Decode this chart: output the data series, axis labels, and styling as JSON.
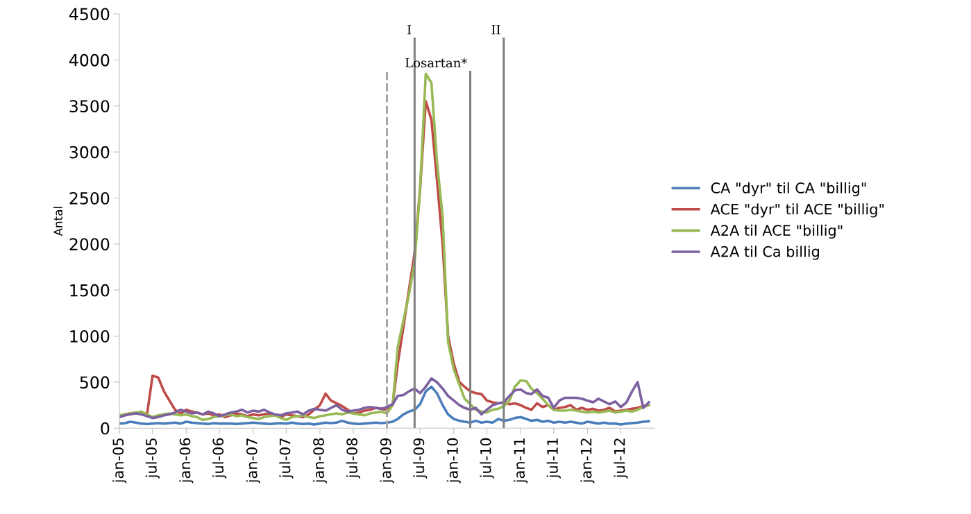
{
  "chart_data": {
    "type": "line",
    "ylabel": "Antal",
    "x": [
      "2005-01",
      "2005-02",
      "2005-03",
      "2005-04",
      "2005-05",
      "2005-06",
      "2005-07",
      "2005-08",
      "2005-09",
      "2005-10",
      "2005-11",
      "2005-12",
      "2006-01",
      "2006-02",
      "2006-03",
      "2006-04",
      "2006-05",
      "2006-06",
      "2006-07",
      "2006-08",
      "2006-09",
      "2006-10",
      "2006-11",
      "2006-12",
      "2007-01",
      "2007-02",
      "2007-03",
      "2007-04",
      "2007-05",
      "2007-06",
      "2007-07",
      "2007-08",
      "2007-09",
      "2007-10",
      "2007-11",
      "2007-12",
      "2008-01",
      "2008-02",
      "2008-03",
      "2008-04",
      "2008-05",
      "2008-06",
      "2008-07",
      "2008-08",
      "2008-09",
      "2008-10",
      "2008-11",
      "2008-12",
      "2009-01",
      "2009-02",
      "2009-03",
      "2009-04",
      "2009-05",
      "2009-06",
      "2009-07",
      "2009-08",
      "2009-09",
      "2009-10",
      "2009-11",
      "2009-12",
      "2010-01",
      "2010-02",
      "2010-03",
      "2010-04",
      "2010-05",
      "2010-06",
      "2010-07",
      "2010-08",
      "2010-09",
      "2010-10",
      "2010-11",
      "2010-12",
      "2011-01",
      "2011-02",
      "2011-03",
      "2011-04",
      "2011-05",
      "2011-06",
      "2011-07",
      "2011-08",
      "2011-09",
      "2011-10",
      "2011-11",
      "2011-12",
      "2012-01",
      "2012-02",
      "2012-03",
      "2012-04",
      "2012-05",
      "2012-06",
      "2012-07",
      "2012-08",
      "2012-09",
      "2012-10",
      "2012-11",
      "2012-12"
    ],
    "series": [
      {
        "name": "CA \"dyr\" til CA \"billig\"",
        "color": "#4a7ebb",
        "values": [
          50,
          55,
          70,
          60,
          50,
          45,
          50,
          55,
          50,
          55,
          60,
          50,
          70,
          60,
          55,
          50,
          45,
          55,
          50,
          50,
          50,
          45,
          50,
          55,
          60,
          55,
          50,
          45,
          50,
          55,
          50,
          60,
          50,
          45,
          50,
          40,
          50,
          60,
          55,
          60,
          80,
          60,
          50,
          45,
          50,
          55,
          60,
          55,
          60,
          70,
          100,
          150,
          180,
          200,
          260,
          400,
          450,
          380,
          250,
          150,
          100,
          80,
          70,
          60,
          80,
          60,
          70,
          60,
          100,
          80,
          90,
          110,
          120,
          100,
          80,
          90,
          70,
          80,
          60,
          70,
          60,
          70,
          60,
          50,
          70,
          60,
          50,
          60,
          50,
          50,
          40,
          50,
          55,
          60,
          70,
          75
        ]
      },
      {
        "name": "ACE \"dyr\" til ACE \"billig\"",
        "color": "#be4b48",
        "values": [
          130,
          150,
          160,
          170,
          160,
          150,
          570,
          550,
          400,
          300,
          200,
          160,
          200,
          180,
          170,
          150,
          160,
          140,
          150,
          120,
          140,
          160,
          150,
          130,
          150,
          140,
          150,
          160,
          140,
          120,
          150,
          140,
          130,
          120,
          150,
          200,
          250,
          375,
          300,
          270,
          240,
          200,
          160,
          170,
          190,
          200,
          220,
          210,
          200,
          250,
          700,
          1100,
          1500,
          1900,
          2600,
          3550,
          3350,
          2700,
          2000,
          1000,
          700,
          500,
          450,
          400,
          380,
          370,
          300,
          280,
          270,
          280,
          260,
          270,
          250,
          220,
          200,
          270,
          230,
          250,
          200,
          220,
          230,
          250,
          200,
          220,
          200,
          210,
          190,
          200,
          220,
          180,
          190,
          200,
          210,
          220,
          240,
          250
        ]
      },
      {
        "name": "A2A til ACE \"billig\"",
        "color": "#98b954",
        "values": [
          140,
          150,
          160,
          170,
          180,
          150,
          120,
          140,
          150,
          160,
          150,
          140,
          150,
          130,
          120,
          90,
          100,
          120,
          130,
          140,
          150,
          130,
          140,
          120,
          110,
          100,
          120,
          130,
          140,
          110,
          90,
          120,
          130,
          140,
          120,
          110,
          130,
          140,
          150,
          160,
          150,
          170,
          160,
          150,
          140,
          160,
          170,
          180,
          160,
          250,
          880,
          1170,
          1450,
          1800,
          2600,
          3850,
          3750,
          2900,
          2300,
          935,
          640,
          470,
          320,
          260,
          200,
          180,
          170,
          200,
          210,
          240,
          300,
          450,
          520,
          510,
          430,
          380,
          320,
          250,
          200,
          190,
          190,
          200,
          190,
          180,
          170,
          180,
          170,
          180,
          190,
          170,
          180,
          190,
          180,
          200,
          230,
          250
        ]
      },
      {
        "name": "A2A til Ca billig",
        "color": "#7d60a0",
        "values": [
          120,
          140,
          150,
          160,
          150,
          130,
          110,
          120,
          140,
          150,
          170,
          200,
          180,
          160,
          170,
          150,
          180,
          160,
          130,
          150,
          170,
          180,
          200,
          170,
          190,
          180,
          200,
          170,
          150,
          140,
          160,
          170,
          180,
          150,
          190,
          210,
          200,
          190,
          220,
          250,
          200,
          180,
          190,
          200,
          220,
          230,
          220,
          210,
          230,
          260,
          350,
          360,
          400,
          430,
          380,
          450,
          540,
          500,
          430,
          350,
          300,
          250,
          220,
          200,
          220,
          150,
          200,
          250,
          270,
          280,
          350,
          410,
          420,
          380,
          370,
          420,
          350,
          330,
          220,
          300,
          330,
          330,
          330,
          320,
          300,
          280,
          320,
          290,
          260,
          290,
          230,
          280,
          400,
          500,
          220,
          280
        ]
      }
    ],
    "xlim": [
      "2005-01",
      "2013-01"
    ],
    "xticks": [
      {
        "value": "2005-01",
        "label": "jan-05"
      },
      {
        "value": "2005-07",
        "label": "jul-05"
      },
      {
        "value": "2006-01",
        "label": "jan-06"
      },
      {
        "value": "2006-07",
        "label": "jul-06"
      },
      {
        "value": "2007-01",
        "label": "jan-07"
      },
      {
        "value": "2007-07",
        "label": "jul-07"
      },
      {
        "value": "2008-01",
        "label": "jan-08"
      },
      {
        "value": "2008-07",
        "label": "jul-08"
      },
      {
        "value": "2009-01",
        "label": "jan-09"
      },
      {
        "value": "2009-07",
        "label": "jul-09"
      },
      {
        "value": "2010-01",
        "label": "jan-10"
      },
      {
        "value": "2010-07",
        "label": "jul-10"
      },
      {
        "value": "2011-01",
        "label": "jan-11"
      },
      {
        "value": "2011-07",
        "label": "jul-11"
      },
      {
        "value": "2012-01",
        "label": "jan-12"
      },
      {
        "value": "2012-07",
        "label": "jul-12"
      }
    ],
    "ylim": [
      0,
      4500
    ],
    "yticks": [
      0,
      500,
      1000,
      1500,
      2000,
      2500,
      3000,
      3500,
      4000,
      4500
    ],
    "ref_lines": [
      {
        "axis": "x",
        "value": "2009-01",
        "line_style": "dashed",
        "color": "#a6a6a6"
      },
      {
        "axis": "x",
        "value": "2009-06",
        "label": "I",
        "color": "#808080"
      },
      {
        "axis": "x",
        "value": "2010-04",
        "label": "Losartan*",
        "color": "#808080"
      },
      {
        "axis": "x",
        "value": "2010-10",
        "label": "II",
        "color": "#808080"
      }
    ],
    "grid": false,
    "legend": "right",
    "marker": "none",
    "line_style": "solid"
  }
}
